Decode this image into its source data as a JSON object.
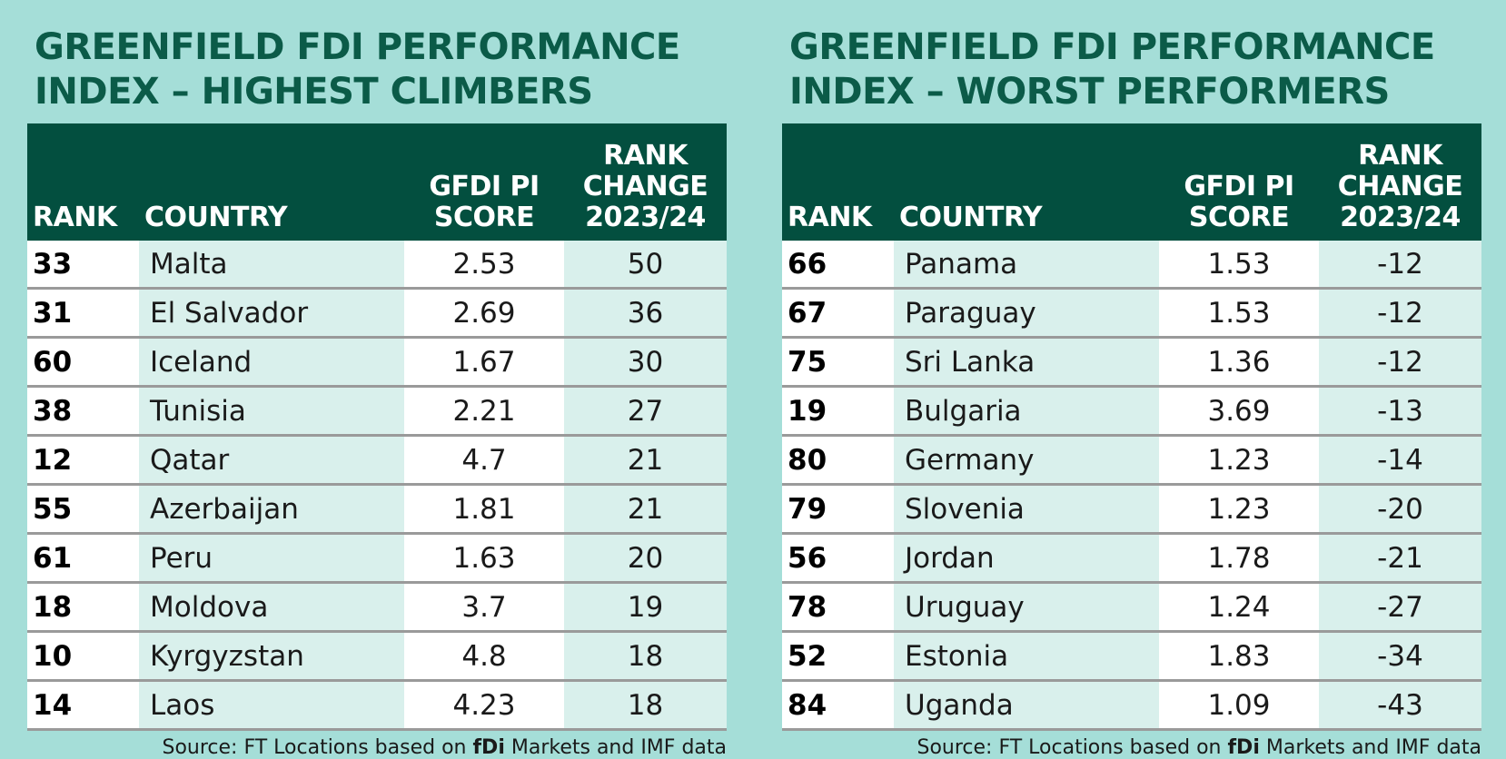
{
  "chart_data": [
    {
      "type": "table",
      "title": "GREENFIELD FDI PERFORMANCE INDEX – HIGHEST CLIMBERS",
      "columns": [
        "RANK",
        "COUNTRY",
        "GFDI PI SCORE",
        "RANK CHANGE 2023/24"
      ],
      "rows": [
        {
          "rank": "33",
          "country": "Malta",
          "score": "2.53",
          "change": "50"
        },
        {
          "rank": "31",
          "country": "El Salvador",
          "score": "2.69",
          "change": "36"
        },
        {
          "rank": "60",
          "country": "Iceland",
          "score": "1.67",
          "change": "30"
        },
        {
          "rank": "38",
          "country": "Tunisia",
          "score": "2.21",
          "change": "27"
        },
        {
          "rank": "12",
          "country": "Qatar",
          "score": "4.7",
          "change": "21"
        },
        {
          "rank": "55",
          "country": "Azerbaijan",
          "score": "1.81",
          "change": "21"
        },
        {
          "rank": "61",
          "country": "Peru",
          "score": "1.63",
          "change": "20"
        },
        {
          "rank": "18",
          "country": "Moldova",
          "score": "3.7",
          "change": "19"
        },
        {
          "rank": "10",
          "country": "Kyrgyzstan",
          "score": "4.8",
          "change": "18"
        },
        {
          "rank": "14",
          "country": "Laos",
          "score": "4.23",
          "change": "18"
        }
      ],
      "source_prefix": "Source: FT Locations based on",
      "source_brand": "fDi",
      "source_suffix": "Markets and IMF data"
    },
    {
      "type": "table",
      "title": "GREENFIELD FDI PERFORMANCE INDEX – WORST PERFORMERS",
      "columns": [
        "RANK",
        "COUNTRY",
        "GFDI PI SCORE",
        "RANK CHANGE 2023/24"
      ],
      "rows": [
        {
          "rank": "66",
          "country": "Panama",
          "score": "1.53",
          "change": "-12"
        },
        {
          "rank": "67",
          "country": "Paraguay",
          "score": "1.53",
          "change": "-12"
        },
        {
          "rank": "75",
          "country": "Sri Lanka",
          "score": "1.36",
          "change": "-12"
        },
        {
          "rank": "19",
          "country": "Bulgaria",
          "score": "3.69",
          "change": "-13"
        },
        {
          "rank": "80",
          "country": "Germany",
          "score": "1.23",
          "change": "-14"
        },
        {
          "rank": "79",
          "country": "Slovenia",
          "score": "1.23",
          "change": "-20"
        },
        {
          "rank": "56",
          "country": "Jordan",
          "score": "1.78",
          "change": "-21"
        },
        {
          "rank": "78",
          "country": "Uruguay",
          "score": "1.24",
          "change": "-27"
        },
        {
          "rank": "52",
          "country": "Estonia",
          "score": "1.83",
          "change": "-34"
        },
        {
          "rank": "84",
          "country": "Uganda",
          "score": "1.09",
          "change": "-43"
        }
      ],
      "source_prefix": "Source: FT Locations based on",
      "source_brand": "fDi",
      "source_suffix": "Markets and IMF data"
    }
  ],
  "colors": {
    "background": "#a5ded8",
    "title": "#0b5b48",
    "header": "#034f3f",
    "row_tint": "#d9f0ec"
  }
}
